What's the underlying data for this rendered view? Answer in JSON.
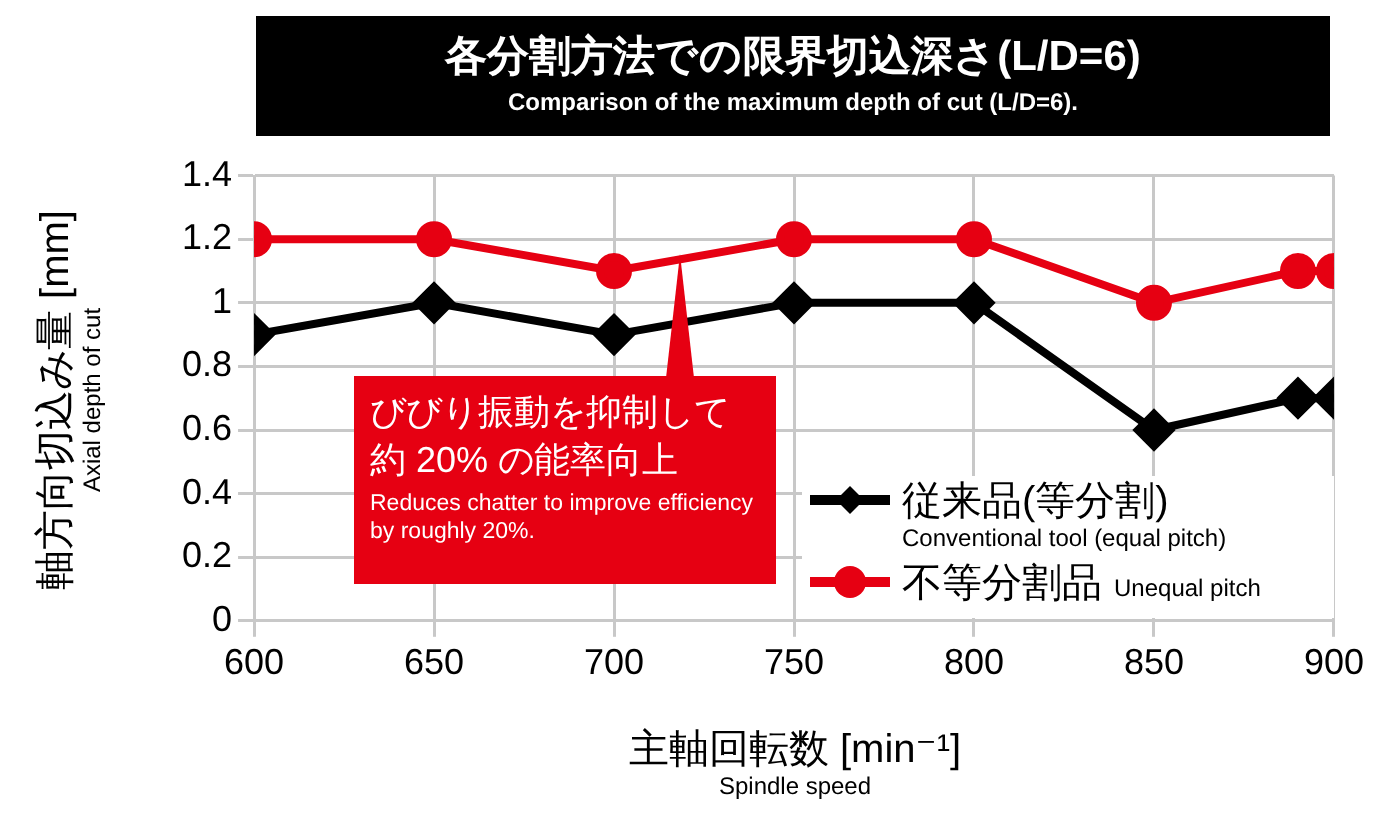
{
  "chart_data": {
    "type": "line",
    "title": "各分割方法での限界切込深さ(L/D=6)",
    "subtitle": "Comparison of the maximum depth of cut (L/D=6).",
    "xlabel": "主軸回転数 [min⁻¹]\nSpindle speed",
    "ylabel": "軸方向切込み量 [mm]\nAxial depth of cut",
    "x": [
      600,
      650,
      700,
      750,
      800,
      850,
      890,
      900
    ],
    "series": [
      {
        "name": "従来品(等分割)\nConventional tool (equal pitch)",
        "color": "#000000",
        "marker": "diamond",
        "values": [
          0.9,
          1.0,
          0.9,
          1.0,
          1.0,
          0.6,
          0.7,
          0.7
        ]
      },
      {
        "name": "不等分割品\nUnequal pitch",
        "color": "#e60012",
        "marker": "circle",
        "values": [
          1.2,
          1.2,
          1.1,
          1.2,
          1.2,
          1.0,
          1.1,
          1.1
        ]
      }
    ],
    "xlim": [
      600,
      900
    ],
    "xticks": [
      600,
      650,
      700,
      750,
      800,
      850,
      900
    ],
    "ylim": [
      0,
      1.4
    ],
    "yticks": [
      0,
      0.2,
      0.4,
      0.6,
      0.8,
      1,
      1.2,
      1.4
    ],
    "grid": true,
    "legend": "bottom right",
    "line_style": "solid",
    "annotations": [
      "びびり振動を抑制して約 20% の能率向上",
      "Reduces chatter to improve efficiency by roughly 20%."
    ]
  }
}
